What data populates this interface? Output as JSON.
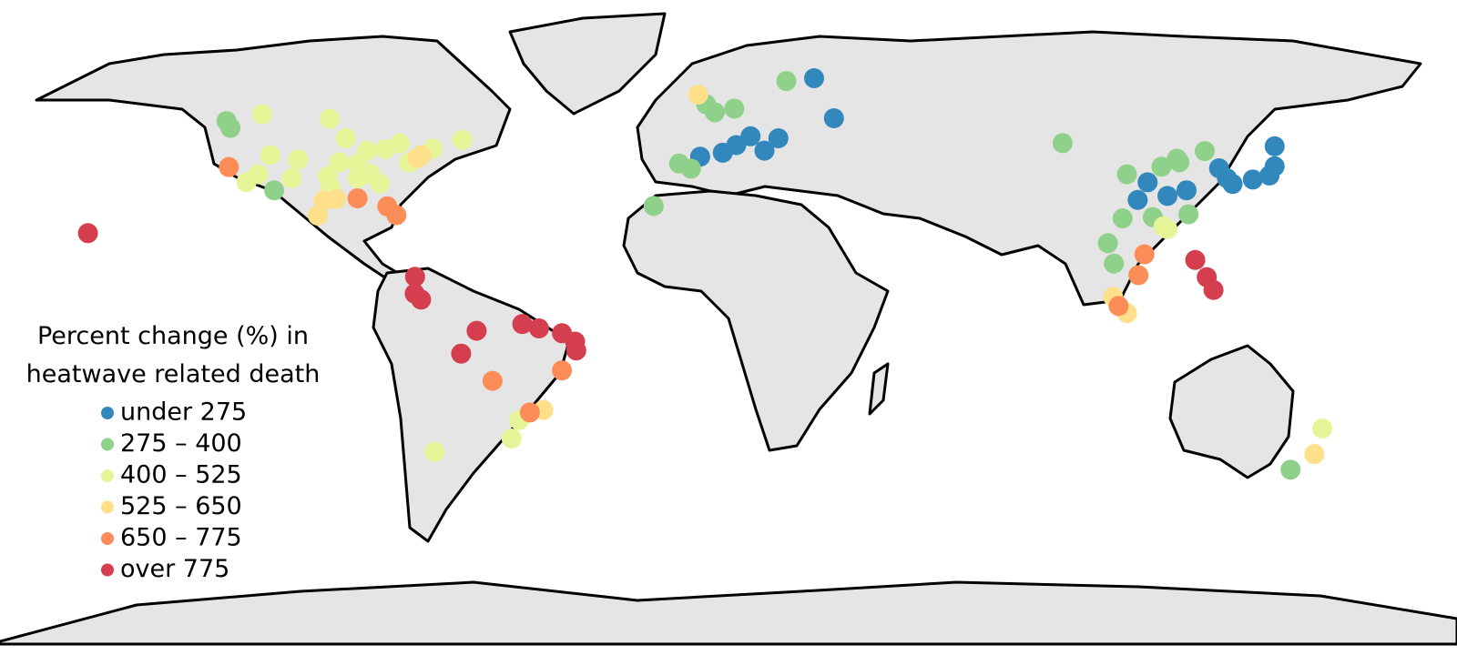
{
  "legend": {
    "title_lines": [
      "Percent change (%) in",
      "heatwave related death"
    ],
    "classes": [
      {
        "label": "under 275",
        "color": "#3288bd"
      },
      {
        "label": "275 – 400",
        "color": "#8fd18a"
      },
      {
        "label": "400 – 525",
        "color": "#e6f598"
      },
      {
        "label": "525 – 650",
        "color": "#fee08b"
      },
      {
        "label": "650 – 775",
        "color": "#fc8d59"
      },
      {
        "label": "over 775",
        "color": "#d53e4f"
      }
    ]
  },
  "points": [
    {
      "lon": 25,
      "lat": 60,
      "class": 0
    },
    {
      "lon": 30,
      "lat": 50,
      "class": 0
    },
    {
      "lon": -3.7,
      "lat": 40.4,
      "class": 0
    },
    {
      "lon": 2,
      "lat": 41.4,
      "class": 0
    },
    {
      "lon": 5.4,
      "lat": 43.3,
      "class": 0
    },
    {
      "lon": 12.5,
      "lat": 41.9,
      "class": 0
    },
    {
      "lon": 9,
      "lat": 45.5,
      "class": 0
    },
    {
      "lon": 16,
      "lat": 45,
      "class": 0
    },
    {
      "lon": 139.7,
      "lat": 35.7,
      "class": 0
    },
    {
      "lon": 135.5,
      "lat": 34.7,
      "class": 0
    },
    {
      "lon": 127,
      "lat": 37.5,
      "class": 0
    },
    {
      "lon": 129,
      "lat": 35,
      "class": 0
    },
    {
      "lon": 130.4,
      "lat": 33.6,
      "class": 0
    },
    {
      "lon": 141,
      "lat": 43,
      "class": 0
    },
    {
      "lon": 141,
      "lat": 38,
      "class": 0
    },
    {
      "lon": 114,
      "lat": 30.6,
      "class": 0
    },
    {
      "lon": 118.8,
      "lat": 32,
      "class": 0
    },
    {
      "lon": 106.5,
      "lat": 29.6,
      "class": 0
    },
    {
      "lon": 109,
      "lat": 34,
      "class": 0
    },
    {
      "lon": 18,
      "lat": 59.3,
      "class": 1
    },
    {
      "lon": 0,
      "lat": 51.5,
      "class": 1
    },
    {
      "lon": -2.2,
      "lat": 53.5,
      "class": 1
    },
    {
      "lon": 4.9,
      "lat": 52.4,
      "class": 1
    },
    {
      "lon": -9,
      "lat": 38.7,
      "class": 1
    },
    {
      "lon": -6,
      "lat": 37.4,
      "class": 1
    },
    {
      "lon": -123,
      "lat": 49.3,
      "class": 1
    },
    {
      "lon": -122,
      "lat": 47.6,
      "class": 1
    },
    {
      "lon": -15.4,
      "lat": 28.1,
      "class": 1
    },
    {
      "lon": 87.6,
      "lat": 43.8,
      "class": 1
    },
    {
      "lon": 116.4,
      "lat": 39.9,
      "class": 1
    },
    {
      "lon": 117,
      "lat": 39,
      "class": 1
    },
    {
      "lon": 123.4,
      "lat": 41.8,
      "class": 1
    },
    {
      "lon": 103.8,
      "lat": 36,
      "class": 1
    },
    {
      "lon": 112.5,
      "lat": 37.9,
      "class": 1
    },
    {
      "lon": 102.7,
      "lat": 25,
      "class": 1
    },
    {
      "lon": 110.3,
      "lat": 25.3,
      "class": 1
    },
    {
      "lon": 119.3,
      "lat": 26,
      "class": 1
    },
    {
      "lon": 100.5,
      "lat": 13.7,
      "class": 1
    },
    {
      "lon": 99,
      "lat": 18.8,
      "class": 1
    },
    {
      "lon": 145,
      "lat": -37.8,
      "class": 1
    },
    {
      "lon": -111,
      "lat": 32,
      "class": 1
    },
    {
      "lon": -114,
      "lat": 51,
      "class": 2
    },
    {
      "lon": -97,
      "lat": 49.9,
      "class": 2
    },
    {
      "lon": -79.4,
      "lat": 43.7,
      "class": 2
    },
    {
      "lon": -87.6,
      "lat": 41.9,
      "class": 2
    },
    {
      "lon": -105,
      "lat": 39.7,
      "class": 2
    },
    {
      "lon": -112,
      "lat": 40.8,
      "class": 2
    },
    {
      "lon": -94.6,
      "lat": 39,
      "class": 2
    },
    {
      "lon": -93,
      "lat": 45,
      "class": 2
    },
    {
      "lon": -83,
      "lat": 42.3,
      "class": 2
    },
    {
      "lon": -96.8,
      "lat": 32.8,
      "class": 2
    },
    {
      "lon": -84.4,
      "lat": 33.7,
      "class": 2
    },
    {
      "lon": -90,
      "lat": 38.6,
      "class": 2
    },
    {
      "lon": -86.8,
      "lat": 36.2,
      "class": 2
    },
    {
      "lon": -71,
      "lat": 42.4,
      "class": 2
    },
    {
      "lon": -63.6,
      "lat": 44.6,
      "class": 2
    },
    {
      "lon": -77,
      "lat": 38.9,
      "class": 2
    },
    {
      "lon": -118,
      "lat": 34,
      "class": 2
    },
    {
      "lon": -115,
      "lat": 36,
      "class": 2
    },
    {
      "lon": -106.6,
      "lat": 35,
      "class": 2
    },
    {
      "lon": -90,
      "lat": 35,
      "class": 2
    },
    {
      "lon": -97.5,
      "lat": 35.5,
      "class": 2
    },
    {
      "lon": -51.2,
      "lat": -30,
      "class": 2
    },
    {
      "lon": -49.3,
      "lat": -25.4,
      "class": 2
    },
    {
      "lon": -70.6,
      "lat": -33.4,
      "class": 2
    },
    {
      "lon": 153,
      "lat": -27.5,
      "class": 2
    },
    {
      "lon": 114,
      "lat": 22.3,
      "class": 2
    },
    {
      "lon": 113,
      "lat": 23,
      "class": 2
    },
    {
      "lon": -4.2,
      "lat": 55.9,
      "class": 3
    },
    {
      "lon": -74,
      "lat": 40.7,
      "class": 3
    },
    {
      "lon": -75,
      "lat": 40,
      "class": 3
    },
    {
      "lon": -95.4,
      "lat": 29.8,
      "class": 3
    },
    {
      "lon": -98.5,
      "lat": 29.4,
      "class": 3
    },
    {
      "lon": -100,
      "lat": 25.7,
      "class": 3
    },
    {
      "lon": -43.2,
      "lat": -22.9,
      "class": 3
    },
    {
      "lon": 151,
      "lat": -33.9,
      "class": 3
    },
    {
      "lon": 103.8,
      "lat": 1.3,
      "class": 3
    },
    {
      "lon": 100.3,
      "lat": 5.4,
      "class": 3
    },
    {
      "lon": -122.4,
      "lat": 37.8,
      "class": 4
    },
    {
      "lon": -82.5,
      "lat": 28,
      "class": 4
    },
    {
      "lon": -80.2,
      "lat": 25.8,
      "class": 4
    },
    {
      "lon": -90,
      "lat": 30,
      "class": 4
    },
    {
      "lon": -46.6,
      "lat": -23.5,
      "class": 4
    },
    {
      "lon": -56,
      "lat": -15.6,
      "class": 4
    },
    {
      "lon": -38.5,
      "lat": -13,
      "class": 4
    },
    {
      "lon": 106.7,
      "lat": 10.8,
      "class": 4
    },
    {
      "lon": 108.2,
      "lat": 16,
      "class": 4
    },
    {
      "lon": 101.7,
      "lat": 3.1,
      "class": 4
    },
    {
      "lon": -157.9,
      "lat": 21.3,
      "class": 5
    },
    {
      "lon": -75.5,
      "lat": 10.4,
      "class": 5
    },
    {
      "lon": -75.6,
      "lat": 6.2,
      "class": 5
    },
    {
      "lon": -74,
      "lat": 4.7,
      "class": 5
    },
    {
      "lon": -60,
      "lat": -3.1,
      "class": 5
    },
    {
      "lon": -48.5,
      "lat": -1.4,
      "class": 5
    },
    {
      "lon": -44.3,
      "lat": -2.5,
      "class": 5
    },
    {
      "lon": -38.5,
      "lat": -3.7,
      "class": 5
    },
    {
      "lon": -35.2,
      "lat": -5.8,
      "class": 5
    },
    {
      "lon": -34.9,
      "lat": -8,
      "class": 5
    },
    {
      "lon": -63.9,
      "lat": -8.8,
      "class": 5
    },
    {
      "lon": 121,
      "lat": 14.6,
      "class": 5
    },
    {
      "lon": 123.9,
      "lat": 10.3,
      "class": 5
    },
    {
      "lon": 125.6,
      "lat": 7.1,
      "class": 5
    }
  ]
}
